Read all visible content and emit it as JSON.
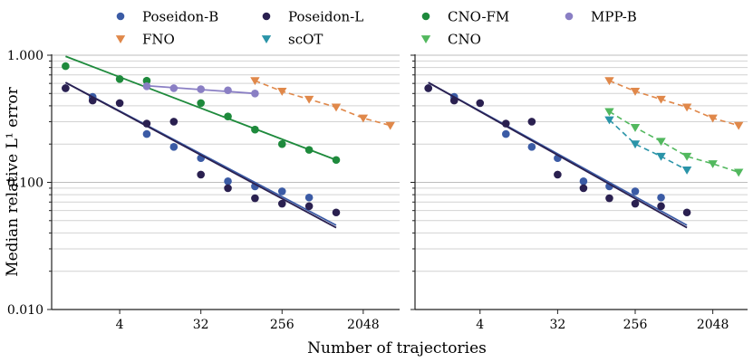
{
  "chart_data": {
    "type": "scatter",
    "xlabel": "Number of trajectories",
    "ylabel": "Median relative L¹ error",
    "x_scale": "log2",
    "y_scale": "log10",
    "xlim": [
      0.7,
      5200
    ],
    "ylim": [
      0.01,
      1.0
    ],
    "x_ticks": [
      {
        "value": 4,
        "label": "4"
      },
      {
        "value": 32,
        "label": "32"
      },
      {
        "value": 256,
        "label": "256"
      },
      {
        "value": 2048,
        "label": "2048"
      }
    ],
    "y_ticks": [
      {
        "value": 0.01,
        "label": "0.010"
      },
      {
        "value": 0.1,
        "label": "0.100"
      },
      {
        "value": 1.0,
        "label": "1.000"
      }
    ],
    "grid": "horizontal, minor log ticks",
    "legend": {
      "location": "top",
      "entries": [
        {
          "label": "Poseidon-B",
          "color": "#3b5ba5",
          "marker": "circle"
        },
        {
          "label": "Poseidon-L",
          "color": "#2a2050",
          "marker": "circle"
        },
        {
          "label": "CNO-FM",
          "color": "#1e8a3c",
          "marker": "circle"
        },
        {
          "label": "MPP-B",
          "color": "#8a7fc4",
          "marker": "circle"
        },
        {
          "label": "FNO",
          "color": "#e0884a",
          "marker": "triangle-down"
        },
        {
          "label": "scOT",
          "color": "#2a94a8",
          "marker": "triangle-down"
        },
        {
          "label": "CNO",
          "color": "#52b85e",
          "marker": "triangle-down"
        }
      ]
    },
    "panels": [
      {
        "name": "left",
        "series": [
          {
            "name": "Poseidon-B",
            "color": "#3b5ba5",
            "marker": "circle",
            "line": "solid",
            "x": [
              1,
              2,
              8,
              16,
              32,
              64,
              128,
              256,
              512
            ],
            "y": [
              0.55,
              0.47,
              0.24,
              0.19,
              0.155,
              0.102,
              0.093,
              0.085,
              0.076
            ],
            "fit": {
              "x": [
                1,
                1024
              ],
              "y": [
                0.61,
                0.046
              ]
            }
          },
          {
            "name": "Poseidon-L",
            "color": "#2a2050",
            "marker": "circle",
            "line": "solid",
            "x": [
              1,
              2,
              4,
              8,
              16,
              32,
              64,
              128,
              256,
              512,
              1024
            ],
            "y": [
              0.55,
              0.44,
              0.42,
              0.29,
              0.3,
              0.115,
              0.09,
              0.075,
              0.068,
              0.065,
              0.058
            ],
            "fit": {
              "x": [
                1,
                1024
              ],
              "y": [
                0.61,
                0.044
              ]
            }
          },
          {
            "name": "CNO-FM",
            "color": "#1e8a3c",
            "marker": "circle",
            "line": "solid",
            "x": [
              1,
              4,
              8,
              32,
              64,
              128,
              256,
              512,
              1024
            ],
            "y": [
              0.82,
              0.65,
              0.63,
              0.42,
              0.33,
              0.26,
              0.2,
              0.18,
              0.15
            ],
            "fit": {
              "x": [
                1,
                1024
              ],
              "y": [
                0.98,
                0.15
              ]
            }
          },
          {
            "name": "MPP-B",
            "color": "#8a7fc4",
            "marker": "circle",
            "line": "solid",
            "x": [
              8,
              16,
              32,
              64,
              128
            ],
            "y": [
              0.57,
              0.55,
              0.54,
              0.53,
              0.5
            ],
            "fit": {
              "x": [
                8,
                128
              ],
              "y": [
                0.575,
                0.5
              ]
            }
          },
          {
            "name": "FNO",
            "color": "#e0884a",
            "marker": "triangle-down",
            "line": "dashed",
            "x": [
              128,
              256,
              512,
              1024,
              2048,
              4096
            ],
            "y": [
              0.63,
              0.52,
              0.45,
              0.39,
              0.32,
              0.28
            ]
          }
        ]
      },
      {
        "name": "right",
        "series": [
          {
            "name": "Poseidon-B",
            "color": "#3b5ba5",
            "marker": "circle",
            "line": "solid",
            "x": [
              1,
              2,
              8,
              16,
              32,
              64,
              128,
              256,
              512
            ],
            "y": [
              0.55,
              0.47,
              0.24,
              0.19,
              0.155,
              0.102,
              0.093,
              0.085,
              0.076
            ],
            "fit": {
              "x": [
                1,
                1024
              ],
              "y": [
                0.61,
                0.046
              ]
            }
          },
          {
            "name": "Poseidon-L",
            "color": "#2a2050",
            "marker": "circle",
            "line": "solid",
            "x": [
              1,
              2,
              4,
              8,
              16,
              32,
              64,
              128,
              256,
              512,
              1024
            ],
            "y": [
              0.55,
              0.44,
              0.42,
              0.29,
              0.3,
              0.115,
              0.09,
              0.075,
              0.068,
              0.065,
              0.058
            ],
            "fit": {
              "x": [
                1,
                1024
              ],
              "y": [
                0.61,
                0.044
              ]
            }
          },
          {
            "name": "FNO",
            "color": "#e0884a",
            "marker": "triangle-down",
            "line": "dashed",
            "x": [
              128,
              256,
              512,
              1024,
              2048,
              4096
            ],
            "y": [
              0.63,
              0.52,
              0.45,
              0.39,
              0.32,
              0.28
            ]
          },
          {
            "name": "scOT",
            "color": "#2a94a8",
            "marker": "triangle-down",
            "line": "dashed",
            "x": [
              128,
              256,
              512,
              1024
            ],
            "y": [
              0.31,
              0.2,
              0.16,
              0.125
            ]
          },
          {
            "name": "CNO",
            "color": "#52b85e",
            "marker": "triangle-down",
            "line": "dashed",
            "x": [
              128,
              256,
              512,
              1024,
              2048,
              4096
            ],
            "y": [
              0.36,
              0.27,
              0.21,
              0.16,
              0.14,
              0.12
            ]
          }
        ]
      }
    ]
  }
}
